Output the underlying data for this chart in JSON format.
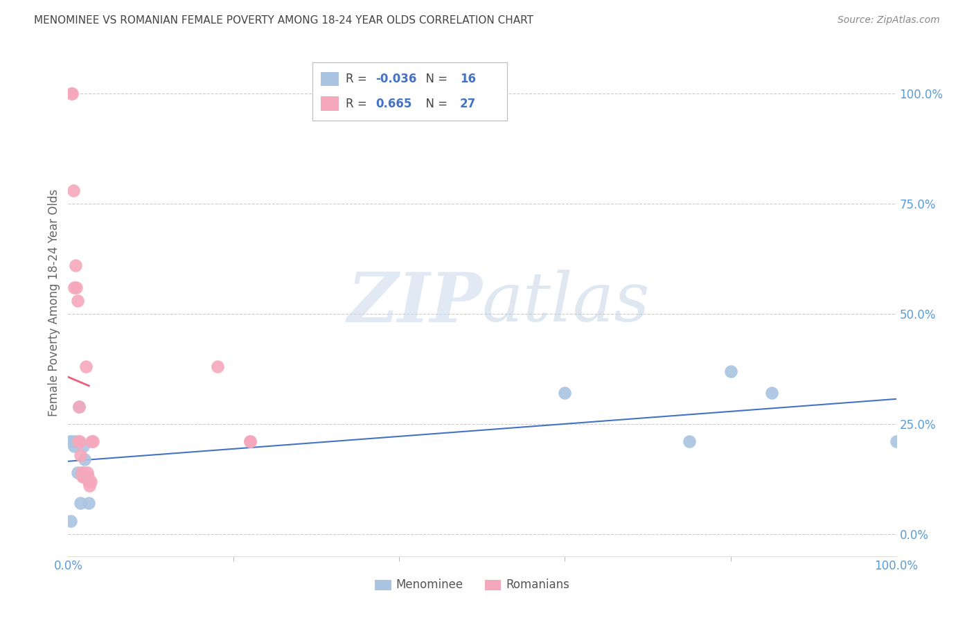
{
  "title": "MENOMINEE VS ROMANIAN FEMALE POVERTY AMONG 18-24 YEAR OLDS CORRELATION CHART",
  "source": "Source: ZipAtlas.com",
  "ylabel": "Female Poverty Among 18-24 Year Olds",
  "xlim": [
    0,
    1.0
  ],
  "ylim": [
    -0.05,
    1.1
  ],
  "xtick_labels": [
    "0.0%",
    "100.0%"
  ],
  "xtick_positions": [
    0.0,
    1.0
  ],
  "ytick_labels": [
    "100.0%",
    "75.0%",
    "50.0%",
    "25.0%",
    "0.0%"
  ],
  "ytick_positions": [
    1.0,
    0.75,
    0.5,
    0.25,
    0.0
  ],
  "menominee_color": "#aac4e2",
  "romanian_color": "#f5a8bc",
  "menominee_line_color": "#4472c4",
  "romanian_line_color": "#e8607a",
  "menominee_R": -0.036,
  "menominee_N": 16,
  "romanian_R": 0.665,
  "romanian_N": 27,
  "menominee_x": [
    0.002,
    0.003,
    0.005,
    0.007,
    0.009,
    0.011,
    0.013,
    0.015,
    0.018,
    0.02,
    0.025,
    0.6,
    0.75,
    0.8,
    0.85,
    1.0
  ],
  "menominee_y": [
    0.21,
    0.03,
    0.21,
    0.2,
    0.21,
    0.14,
    0.29,
    0.07,
    0.2,
    0.17,
    0.07,
    0.32,
    0.21,
    0.37,
    0.32,
    0.21
  ],
  "romanian_x": [
    0.004,
    0.005,
    0.006,
    0.007,
    0.009,
    0.01,
    0.011,
    0.012,
    0.013,
    0.014,
    0.015,
    0.016,
    0.017,
    0.018,
    0.019,
    0.02,
    0.021,
    0.023,
    0.024,
    0.025,
    0.026,
    0.027,
    0.028,
    0.03,
    0.18,
    0.22,
    0.22
  ],
  "romanian_y": [
    1.0,
    1.0,
    0.78,
    0.56,
    0.61,
    0.56,
    0.53,
    0.21,
    0.29,
    0.21,
    0.18,
    0.14,
    0.13,
    0.14,
    0.13,
    0.13,
    0.38,
    0.14,
    0.13,
    0.12,
    0.11,
    0.12,
    0.21,
    0.21,
    0.38,
    0.21,
    0.21
  ],
  "watermark_zip": "ZIP",
  "watermark_atlas": "atlas",
  "grid_color": "#cccccc",
  "axis_label_color": "#5b9bd5",
  "title_color": "#444444",
  "source_color": "#888888",
  "ylabel_color": "#666666",
  "legend_R_color": "#e05070",
  "legend_N_color": "#4472c4",
  "bottom_legend_labels": [
    "Menominee",
    "Romanians"
  ]
}
